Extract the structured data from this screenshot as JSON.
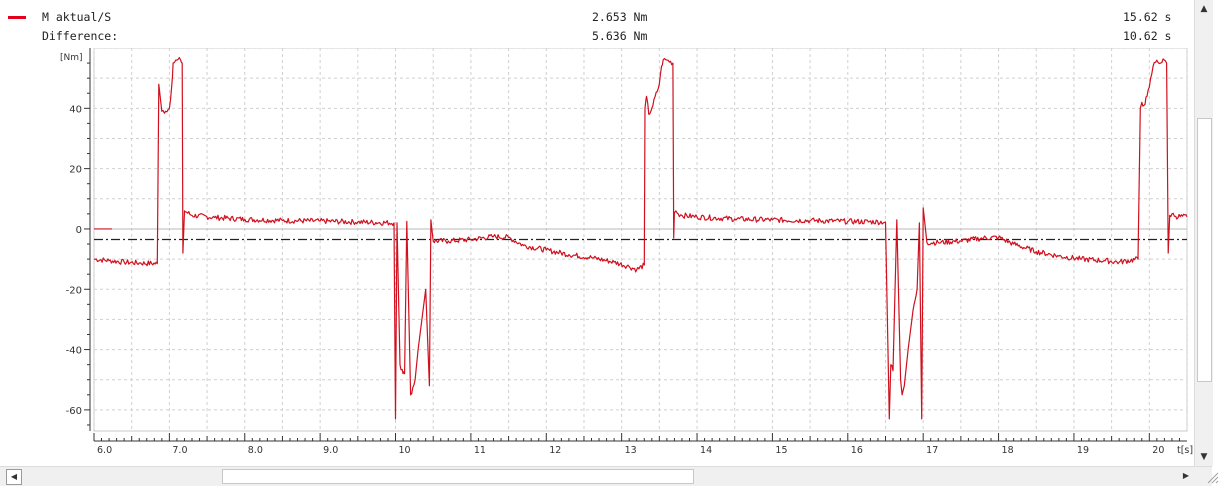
{
  "legend": {
    "color": "#e2001a",
    "row1": {
      "label": "M aktual/S",
      "value": "2.653 Nm",
      "time": "15.62 s"
    },
    "row2": {
      "label": "Difference:",
      "value": "5.636 Nm",
      "time": "10.62 s"
    }
  },
  "scrollbars": {
    "up_icon": "scroll-up-arrow",
    "down_icon": "scroll-down-arrow",
    "left_icon": "scroll-left-arrow",
    "right_icon": "scroll-right-arrow"
  },
  "chart_data": {
    "type": "line",
    "ylabel": "[Nm]",
    "xlabel": "t[s]",
    "xlim": [
      6.0,
      20.5
    ],
    "ylim": [
      -67,
      60
    ],
    "grid": true,
    "line_color": "#d0101e",
    "cursor_color": "#222222",
    "x_ticks": [
      "6.0",
      "7.0",
      "8.0",
      "9.0",
      "10",
      "11",
      "12",
      "13",
      "14",
      "15",
      "16",
      "17",
      "18",
      "19",
      "20"
    ],
    "x_tick_values": [
      6,
      7,
      8,
      9,
      10,
      11,
      12,
      13,
      14,
      15,
      16,
      17,
      18,
      19,
      20
    ],
    "y_ticks": [
      40,
      20,
      0,
      -20,
      -40,
      -60
    ],
    "y_tick_labels": [
      "40",
      "20",
      "0",
      "-20",
      "-40",
      "-60"
    ],
    "reference_lines": [
      {
        "y": -3.5,
        "style": "dash-dot"
      }
    ],
    "series": [
      {
        "x": [
          6.0,
          6.2,
          6.4,
          6.6,
          6.84,
          6.86,
          6.9,
          6.95,
          7.0,
          7.03,
          7.05,
          7.1,
          7.15,
          7.17,
          7.18,
          7.2,
          7.3,
          7.6,
          8.0,
          8.5,
          9.0,
          9.5,
          9.98,
          10.0,
          10.02,
          10.06,
          10.1,
          10.12,
          10.15,
          10.2,
          10.26,
          10.3,
          10.35,
          10.4,
          10.45,
          10.47,
          10.5,
          10.7,
          11.0,
          11.3,
          11.5,
          11.7,
          12.0,
          12.3,
          12.6,
          12.9,
          13.1,
          13.2,
          13.3,
          13.31,
          13.33,
          13.36,
          13.4,
          13.5,
          13.53,
          13.55,
          13.6,
          13.68,
          13.69,
          13.7,
          13.72,
          13.75,
          13.8,
          14.0,
          14.5,
          15.0,
          15.5,
          16.0,
          16.5,
          16.55,
          16.57,
          16.6,
          16.65,
          16.7,
          16.72,
          16.75,
          16.8,
          16.85,
          16.88,
          16.92,
          16.95,
          16.98,
          17.0,
          17.05,
          17.2,
          17.5,
          17.8,
          18.0,
          18.2,
          18.5,
          18.8,
          19.1,
          19.4,
          19.6,
          19.85,
          19.88,
          19.9,
          19.93,
          19.97,
          20.0,
          20.05,
          20.1,
          20.15,
          20.2,
          20.23,
          20.25,
          20.27,
          20.3,
          20.35,
          20.5
        ],
        "y": [
          -10,
          -10.5,
          -11,
          -11.3,
          -11.5,
          48,
          39,
          39,
          40,
          47,
          55,
          56,
          56,
          55,
          -8,
          6,
          4.5,
          3.8,
          3.2,
          2.8,
          2.6,
          2.3,
          2.0,
          -63,
          2,
          -45,
          -48,
          -48,
          2.5,
          -55,
          -50,
          -40,
          -30,
          -20,
          -52,
          3,
          -4,
          -4,
          -3.5,
          -2.5,
          -2.8,
          -5.5,
          -7,
          -8.5,
          -9.5,
          -11,
          -12.5,
          -13.5,
          -12,
          40,
          44,
          38,
          40,
          48,
          54,
          56,
          56,
          55,
          -3,
          5.5,
          6,
          5,
          4.5,
          4,
          3.3,
          3,
          2.8,
          2.5,
          2.3,
          -63,
          -45,
          -47,
          3,
          -50,
          -55,
          -52,
          -40,
          -30,
          -25,
          -20,
          2,
          -63,
          7,
          -4.5,
          -4.5,
          -4,
          -3,
          -2.8,
          -5,
          -7.5,
          -9,
          -10,
          -10.5,
          -11,
          -10,
          40,
          42,
          41,
          44,
          47,
          54,
          56,
          55,
          56,
          55,
          -8,
          4.5,
          5,
          4.2,
          4
        ]
      }
    ]
  }
}
